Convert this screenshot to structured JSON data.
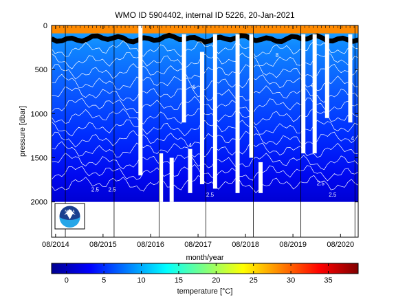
{
  "chart_data": {
    "type": "heatmap",
    "title": "WMO ID 5904402, internal ID 5226, 20-Jan-2021",
    "xlabel": "month/year",
    "ylabel": "pressure [dbar]",
    "x_range": [
      "2014-07-01",
      "2020-12-15"
    ],
    "x_ticks": [
      {
        "date": "2014-08-01",
        "label": "08/2014"
      },
      {
        "date": "2015-08-01",
        "label": "08/2015"
      },
      {
        "date": "2016-08-01",
        "label": "08/2016"
      },
      {
        "date": "2017-08-01",
        "label": "08/2017"
      },
      {
        "date": "2018-08-01",
        "label": "08/2018"
      },
      {
        "date": "2019-08-01",
        "label": "08/2019"
      },
      {
        "date": "2020-08-01",
        "label": "08/2020"
      }
    ],
    "ylim": [
      2400,
      0
    ],
    "y_ticks": [
      {
        "value": 0,
        "label": "0"
      },
      {
        "value": 500,
        "label": "500"
      },
      {
        "value": 1000,
        "label": "1000"
      },
      {
        "value": 1500,
        "label": "1500"
      },
      {
        "value": 2000,
        "label": "2000"
      }
    ],
    "pressure_max": 2000,
    "vertical_lines": [
      "2014-10-15",
      "2015-10-25",
      "2016-10-05",
      "2017-10-01",
      "2018-10-01",
      "2019-10-01",
      "2020-11-20"
    ],
    "data_gaps": [
      {
        "date": "2016-05-15",
        "p_from": 0,
        "p_to": 1700
      },
      {
        "date": "2016-10-20",
        "p_from": 1450,
        "p_to": 2000
      },
      {
        "date": "2017-01-10",
        "p_from": 1500,
        "p_to": 2000
      },
      {
        "date": "2017-04-15",
        "p_from": 100,
        "p_to": 1100
      },
      {
        "date": "2017-06-01",
        "p_from": 1400,
        "p_to": 1900
      },
      {
        "date": "2017-09-01",
        "p_from": 300,
        "p_to": 1800
      },
      {
        "date": "2017-12-10",
        "p_from": 100,
        "p_to": 1850
      },
      {
        "date": "2018-06-01",
        "p_from": 100,
        "p_to": 1900
      },
      {
        "date": "2018-09-15",
        "p_from": 100,
        "p_to": 1500
      },
      {
        "date": "2018-11-25",
        "p_from": 1550,
        "p_to": 1900
      },
      {
        "date": "2019-10-20",
        "p_from": 100,
        "p_to": 1450
      },
      {
        "date": "2020-01-15",
        "p_from": 100,
        "p_to": 1450
      },
      {
        "date": "2020-04-20",
        "p_from": 100,
        "p_to": 1050
      },
      {
        "date": "2020-10-15",
        "p_from": 100,
        "p_to": 1100
      }
    ],
    "contour_levels": [
      2.5,
      3,
      3.5,
      4,
      4.5,
      5,
      5.5,
      6,
      6.5,
      7,
      7.5,
      8,
      8.5
    ],
    "contour_labels": [
      {
        "text": "2.5",
        "date": "2015-06-01",
        "p": 1880
      },
      {
        "text": "2.5",
        "date": "2015-10-10",
        "p": 1880
      },
      {
        "text": "2.5",
        "date": "2017-11-01",
        "p": 1940
      },
      {
        "text": "2.5",
        "date": "2020-03-01",
        "p": 1810
      },
      {
        "text": "2.5",
        "date": "2020-06-01",
        "p": 1940
      },
      {
        "text": "4",
        "date": "2017-06-01",
        "p": 1380
      },
      {
        "text": "4",
        "date": "2020-11-01",
        "p": 1300
      },
      {
        "text": "6",
        "date": "2017-07-01",
        "p": 720
      },
      {
        "text": "6",
        "date": "2020-01-01",
        "p": 700
      },
      {
        "text": "8",
        "date": "2019-04-01",
        "p": 360
      }
    ],
    "surface_band": {
      "p_from": 0,
      "p_to": 90,
      "temperature": 28
    },
    "thermocline_p": 150,
    "colorbar": {
      "label": "temperature [°C]",
      "range": [
        -2,
        39
      ],
      "ticks": [
        0,
        5,
        10,
        15,
        20,
        25,
        30,
        35
      ],
      "colormap": "jet"
    },
    "grid": false,
    "legend": "none"
  },
  "logo": {
    "name": "noaa-logo",
    "text": "NOAA"
  }
}
